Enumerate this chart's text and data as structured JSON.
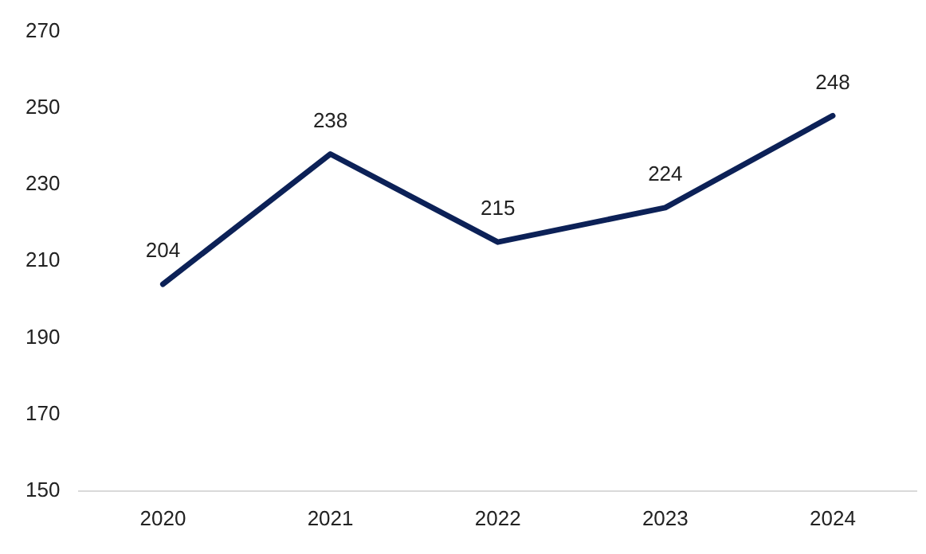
{
  "chart_data": {
    "type": "line",
    "categories": [
      "2020",
      "2021",
      "2022",
      "2023",
      "2024"
    ],
    "series": [
      {
        "color": "#0c2157",
        "values": [
          204,
          238,
          215,
          224,
          248
        ]
      }
    ],
    "ylim": [
      150,
      270
    ],
    "yticks": [
      150,
      170,
      190,
      210,
      230,
      250,
      270
    ],
    "grid": false,
    "legend": false,
    "data_labels": true,
    "marker": "none",
    "line_style": "solid"
  }
}
